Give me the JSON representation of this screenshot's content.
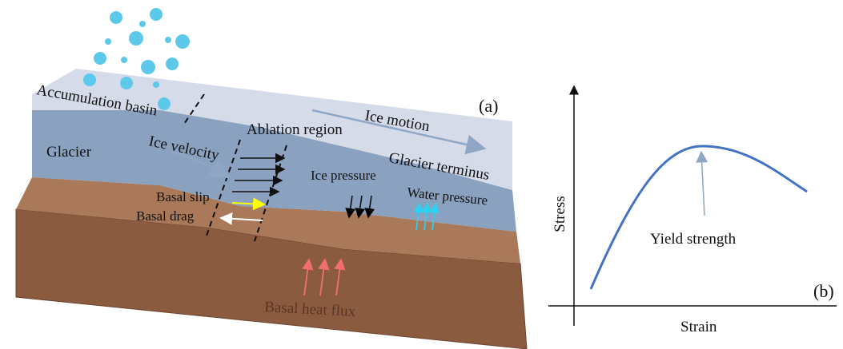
{
  "panel_a": {
    "tag": "(a)",
    "accumulation": "Accumulation basin",
    "ice_motion": "Ice motion",
    "ablation": "Ablation region",
    "glacier": "Glacier",
    "ice_velocity": "Ice velocity",
    "terminus": "Glacier terminus",
    "ice_pressure": "Ice pressure",
    "water_pressure": "Water pressure",
    "basal_slip": "Basal slip",
    "basal_drag": "Basal drag",
    "heat_flux": "Basal heat flux"
  },
  "panel_b": {
    "tag": "(b)",
    "x_axis": "Strain",
    "y_axis": "Stress",
    "annotation": "Yield strength"
  }
}
